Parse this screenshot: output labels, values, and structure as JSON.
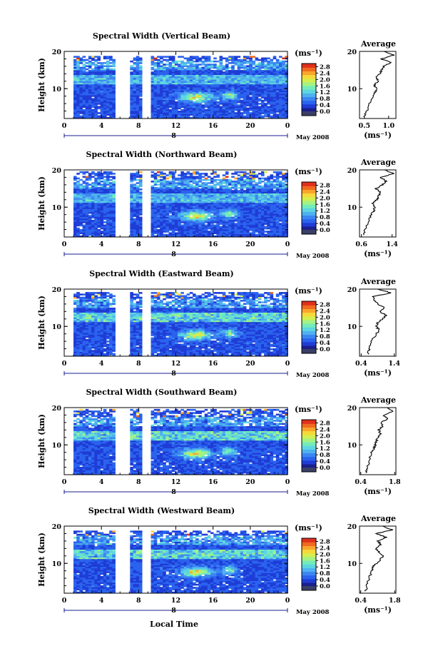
{
  "colors": {
    "colormap": [
      "#1a1f8c",
      "#1f3cd6",
      "#2a63ee",
      "#3d86f2",
      "#4fb1ef",
      "#5ed6e0",
      "#74ecb9",
      "#a4f284",
      "#d3ee4f",
      "#f6d93a",
      "#f9a52b",
      "#f06a1f",
      "#e0301c"
    ],
    "line": "#000000",
    "gap": "#ffffff"
  },
  "chart_data": [
    {
      "type": "heatmap",
      "title": "Spectral Width (Vertical Beam)",
      "ylabel": "Height (km)",
      "y_ticks": [
        "20",
        "10"
      ],
      "x_ticks": [
        "0",
        "4",
        "8",
        "12",
        "16",
        "20",
        "0"
      ],
      "xlim": [
        0,
        24
      ],
      "ylim": [
        2,
        20
      ],
      "date_day": "8",
      "date_label": "May 2008",
      "colorbar_unit": "(ms⁻¹)",
      "colorbar_ticks": [
        "2.8",
        "2.4",
        "2.0",
        "1.6",
        "1.2",
        "0.8",
        "0.4",
        "0.0"
      ],
      "colorbar_range": [
        0.0,
        3.0
      ],
      "gaps_hours": [
        [
          5.6,
          6.9
        ],
        [
          8.6,
          9.1
        ]
      ],
      "data_top_km": 18.5,
      "profile": {
        "title": "Average",
        "x_ticks": [
          "0.5",
          "1.0"
        ],
        "xlim": [
          0.4,
          1.15
        ],
        "xlabel": "(ms⁻¹)",
        "heights_km": [
          2.5,
          4,
          6,
          8,
          9,
          10,
          11,
          12,
          13,
          14,
          15,
          16,
          17,
          18,
          19,
          20
        ],
        "values": [
          0.5,
          0.55,
          0.6,
          0.68,
          0.72,
          0.75,
          0.7,
          0.78,
          0.74,
          0.82,
          0.85,
          0.9,
          1.05,
          0.85,
          1.1,
          0.9
        ]
      }
    },
    {
      "type": "heatmap",
      "title": "Spectral Width (Northward Beam)",
      "ylabel": "Height (km)",
      "y_ticks": [
        "20",
        "10"
      ],
      "x_ticks": [
        "0",
        "4",
        "8",
        "12",
        "16",
        "20",
        "0"
      ],
      "xlim": [
        0,
        24
      ],
      "ylim": [
        2,
        20
      ],
      "date_day": "8",
      "date_label": "May 2008",
      "colorbar_unit": "(ms⁻¹)",
      "colorbar_ticks": [
        "2.8",
        "2.4",
        "2.0",
        "1.6",
        "1.2",
        "0.8",
        "0.4",
        "0.0"
      ],
      "colorbar_range": [
        0.0,
        3.0
      ],
      "gaps_hours": [
        [
          5.6,
          6.9
        ],
        [
          8.6,
          9.1
        ]
      ],
      "data_top_km": 19.5,
      "profile": {
        "title": "Average",
        "x_ticks": [
          "0.6",
          "1.4"
        ],
        "xlim": [
          0.55,
          1.5
        ],
        "xlabel": "(ms⁻¹)",
        "heights_km": [
          2.5,
          4,
          6,
          8,
          9,
          10,
          11,
          12,
          13,
          14,
          15,
          16,
          17,
          18,
          19,
          20
        ],
        "values": [
          0.65,
          0.7,
          0.78,
          0.85,
          0.92,
          0.95,
          0.9,
          1.0,
          1.05,
          1.1,
          0.98,
          1.15,
          1.25,
          1.1,
          1.45,
          1.2
        ]
      }
    },
    {
      "type": "heatmap",
      "title": "Spectral Width (Eastward Beam)",
      "ylabel": "Height (km)",
      "y_ticks": [
        "20",
        "10"
      ],
      "x_ticks": [
        "0",
        "4",
        "8",
        "12",
        "16",
        "20",
        "0"
      ],
      "xlim": [
        0,
        24
      ],
      "ylim": [
        2,
        20
      ],
      "date_day": "8",
      "date_label": "May 2008",
      "colorbar_unit": "(ms⁻¹)",
      "colorbar_ticks": [
        "2.8",
        "2.4",
        "2.0",
        "1.6",
        "1.2",
        "0.8",
        "0.4",
        "0.0"
      ],
      "colorbar_range": [
        0.0,
        3.0
      ],
      "gaps_hours": [
        [
          5.6,
          6.9
        ],
        [
          8.6,
          9.1
        ]
      ],
      "data_top_km": 19.0,
      "profile": {
        "title": "Average",
        "x_ticks": [
          "0.4",
          "1.4"
        ],
        "xlim": [
          0.35,
          1.45
        ],
        "xlabel": "(ms⁻¹)",
        "heights_km": [
          2.5,
          4,
          6,
          8,
          9,
          10,
          11,
          12,
          13,
          14,
          15,
          16,
          17,
          18,
          19,
          20
        ],
        "values": [
          0.6,
          0.65,
          0.72,
          0.85,
          0.95,
          0.85,
          0.9,
          1.05,
          1.15,
          0.95,
          1.1,
          0.9,
          0.8,
          0.75,
          1.3,
          0.9
        ]
      }
    },
    {
      "type": "heatmap",
      "title": "Spectral Width (Southward Beam)",
      "ylabel": "Height (km)",
      "y_ticks": [
        "20",
        "10"
      ],
      "x_ticks": [
        "0",
        "4",
        "8",
        "12",
        "16",
        "20",
        "0"
      ],
      "xlim": [
        0,
        24
      ],
      "ylim": [
        2,
        20
      ],
      "date_day": "8",
      "date_label": "May 2008",
      "colorbar_unit": "(ms⁻¹)",
      "colorbar_ticks": [
        "2.8",
        "2.4",
        "2.0",
        "1.6",
        "1.2",
        "0.8",
        "0.4",
        "0.0"
      ],
      "colorbar_range": [
        0.0,
        3.0
      ],
      "gaps_hours": [
        [
          5.6,
          6.9
        ],
        [
          8.6,
          9.1
        ]
      ],
      "data_top_km": 19.5,
      "profile": {
        "title": "Average",
        "x_ticks": [
          "0.4",
          "1.8"
        ],
        "xlim": [
          0.35,
          1.85
        ],
        "xlabel": "(ms⁻¹)",
        "heights_km": [
          2.5,
          4,
          6,
          8,
          9,
          10,
          11,
          12,
          13,
          14,
          15,
          16,
          17,
          18,
          19,
          20
        ],
        "values": [
          0.6,
          0.68,
          0.75,
          0.85,
          0.95,
          1.0,
          1.05,
          1.1,
          1.2,
          1.15,
          1.3,
          1.25,
          1.5,
          1.35,
          1.75,
          1.5
        ]
      }
    },
    {
      "type": "heatmap",
      "title": "Spectral Width (Westward Beam)",
      "ylabel": "Height (km)",
      "y_ticks": [
        "20",
        "10"
      ],
      "x_ticks": [
        "0",
        "4",
        "8",
        "12",
        "16",
        "20",
        "0"
      ],
      "xlim": [
        0,
        24
      ],
      "ylim": [
        2,
        20
      ],
      "date_day": "8",
      "date_label": "May 2008",
      "colorbar_unit": "(ms⁻¹)",
      "colorbar_ticks": [
        "2.8",
        "2.4",
        "2.0",
        "1.6",
        "1.2",
        "0.8",
        "0.4",
        "0.0"
      ],
      "colorbar_range": [
        0.0,
        3.0
      ],
      "gaps_hours": [
        [
          5.6,
          6.9
        ],
        [
          8.6,
          9.1
        ]
      ],
      "data_top_km": 18.5,
      "profile": {
        "title": "Average",
        "x_ticks": [
          "0.4",
          "1.8"
        ],
        "xlim": [
          0.35,
          1.85
        ],
        "xlabel": "(ms⁻¹)",
        "heights_km": [
          2.5,
          4,
          6,
          8,
          9,
          10,
          11,
          12,
          13,
          14,
          15,
          16,
          17,
          18,
          19,
          20
        ],
        "values": [
          0.6,
          0.65,
          0.75,
          0.85,
          0.9,
          1.05,
          1.2,
          1.35,
          1.15,
          1.0,
          1.25,
          1.1,
          1.45,
          1.05,
          1.7,
          1.3
        ]
      }
    }
  ],
  "xlabel_bottom": "Local Time"
}
